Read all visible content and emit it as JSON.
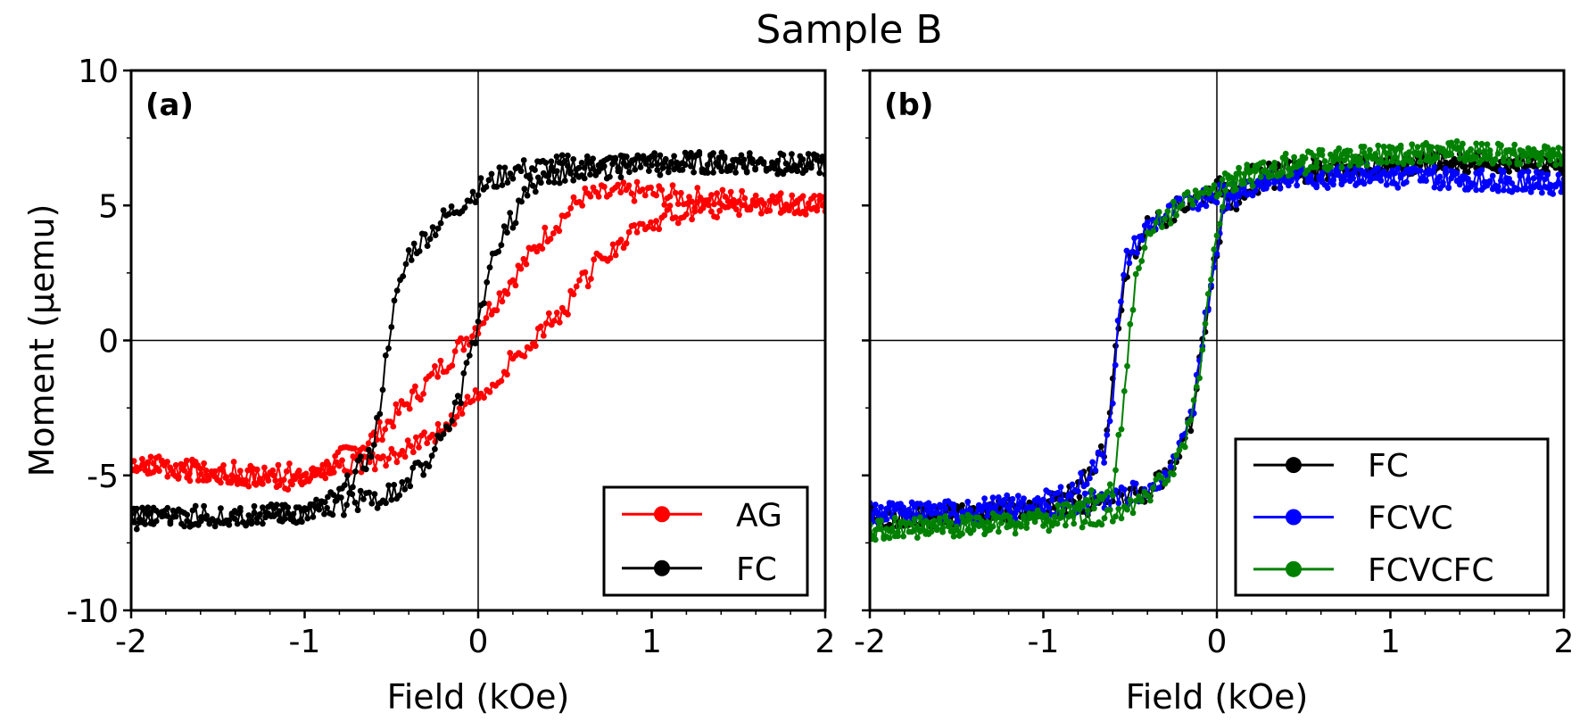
{
  "figure": {
    "title": "Sample B"
  },
  "chart_data": [
    {
      "type": "line",
      "panel_label": "(a)",
      "xlabel": "Field (kOe)",
      "ylabel": "Moment (μemu)",
      "xlim": [
        -2,
        2
      ],
      "ylim": [
        -10,
        10
      ],
      "xticks": [
        "-2",
        "-1",
        "0",
        "1",
        "2"
      ],
      "yticks": [
        "10",
        "5",
        "0",
        "-5",
        "-10"
      ],
      "zero_lines": true,
      "legend_position": "lower-right",
      "series": [
        {
          "name": "AG",
          "color": "#ff0000",
          "branches": [
            {
              "x": [
                -2.0,
                -1.5,
                -1.0,
                -0.6,
                -0.3,
                -0.1,
                0.0,
                0.2,
                0.4,
                0.6,
                0.9,
                1.2,
                1.6,
                2.0
              ],
              "y": [
                -4.5,
                -5.0,
                -5.2,
                -3.6,
                -1.6,
                -0.2,
                0.6,
                2.3,
                4.0,
                5.3,
                5.5,
                5.3,
                5.2,
                5.0
              ]
            },
            {
              "x": [
                2.0,
                1.6,
                1.2,
                0.9,
                0.7,
                0.5,
                0.3,
                0.1,
                0.0,
                -0.2,
                -0.5,
                -0.8,
                -1.2,
                -1.6,
                -2.0
              ],
              "y": [
                5.0,
                5.0,
                4.8,
                4.2,
                3.0,
                1.2,
                0.0,
                -1.4,
                -2.0,
                -3.3,
                -4.2,
                -4.8,
                -5.0,
                -4.8,
                -4.6
              ]
            }
          ]
        },
        {
          "name": "FC",
          "color": "#000000",
          "branches": [
            {
              "x": [
                -2.0,
                -1.5,
                -1.0,
                -0.8,
                -0.6,
                -0.5,
                -0.4,
                -0.2,
                0.0,
                0.2,
                0.5,
                1.0,
                1.5,
                2.0
              ],
              "y": [
                -6.6,
                -6.5,
                -6.4,
                -5.8,
                -4.0,
                0.8,
                3.2,
                4.5,
                5.6,
                6.3,
                6.5,
                6.6,
                6.6,
                6.5
              ]
            },
            {
              "x": [
                2.0,
                1.5,
                1.0,
                0.5,
                0.3,
                0.1,
                0.0,
                -0.1,
                -0.2,
                -0.3,
                -0.5,
                -1.0,
                -1.5,
                -2.0
              ],
              "y": [
                6.5,
                6.6,
                6.5,
                6.3,
                5.6,
                3.5,
                0.5,
                -2.0,
                -3.5,
                -4.5,
                -5.7,
                -6.4,
                -6.5,
                -6.6
              ]
            }
          ]
        }
      ]
    },
    {
      "type": "line",
      "panel_label": "(b)",
      "xlabel": "Field (kOe)",
      "xlim": [
        -2,
        2
      ],
      "ylim": [
        -10,
        10
      ],
      "xticks": [
        "-2",
        "-1",
        "0",
        "1",
        "2"
      ],
      "zero_lines": true,
      "legend_position": "lower-right",
      "series": [
        {
          "name": "FC",
          "color": "#000000",
          "branches": [
            {
              "x": [
                -2.0,
                -1.5,
                -1.0,
                -0.8,
                -0.65,
                -0.6,
                -0.55,
                -0.5,
                -0.4,
                -0.2,
                0.0,
                0.3,
                0.8,
                1.4,
                2.0
              ],
              "y": [
                -6.6,
                -6.5,
                -6.2,
                -5.6,
                -4.0,
                -1.5,
                1.5,
                3.0,
                4.2,
                5.0,
                5.6,
                6.3,
                6.5,
                6.6,
                6.5
              ]
            },
            {
              "x": [
                2.0,
                1.4,
                0.8,
                0.3,
                0.05,
                0.0,
                -0.05,
                -0.1,
                -0.15,
                -0.25,
                -0.4,
                -0.6,
                -1.0,
                -1.5,
                -2.0
              ],
              "y": [
                6.5,
                6.6,
                6.4,
                6.0,
                5.0,
                3.5,
                1.5,
                -1.0,
                -3.0,
                -4.8,
                -5.6,
                -6.0,
                -6.2,
                -6.4,
                -6.6
              ]
            }
          ]
        },
        {
          "name": "FCVC",
          "color": "#0000ff",
          "branches": [
            {
              "x": [
                -2.0,
                -1.5,
                -1.0,
                -0.8,
                -0.65,
                -0.6,
                -0.57,
                -0.52,
                -0.4,
                -0.2,
                0.0,
                0.3,
                0.8,
                1.4,
                2.0
              ],
              "y": [
                -6.4,
                -6.3,
                -6.0,
                -5.4,
                -4.2,
                -2.0,
                0.5,
                3.0,
                4.2,
                5.0,
                5.5,
                6.0,
                6.2,
                6.0,
                5.8
              ]
            },
            {
              "x": [
                2.0,
                1.4,
                0.8,
                0.3,
                0.05,
                0.0,
                -0.05,
                -0.1,
                -0.15,
                -0.25,
                -0.4,
                -0.6,
                -1.0,
                -1.5,
                -2.0
              ],
              "y": [
                5.8,
                6.0,
                6.1,
                5.8,
                5.2,
                3.5,
                1.5,
                -1.0,
                -3.0,
                -4.6,
                -5.5,
                -5.9,
                -6.2,
                -6.4,
                -6.4
              ]
            }
          ]
        },
        {
          "name": "FCVCFC",
          "color": "#008000",
          "branches": [
            {
              "x": [
                -2.0,
                -1.5,
                -1.0,
                -0.8,
                -0.6,
                -0.55,
                -0.5,
                -0.45,
                -0.35,
                -0.2,
                0.0,
                0.3,
                0.8,
                1.4,
                2.0
              ],
              "y": [
                -7.0,
                -6.9,
                -6.6,
                -6.2,
                -5.5,
                -3.0,
                0.5,
                3.0,
                4.3,
                5.0,
                5.7,
                6.5,
                6.8,
                7.0,
                6.8
              ]
            },
            {
              "x": [
                2.0,
                1.4,
                0.8,
                0.3,
                0.05,
                0.0,
                -0.05,
                -0.1,
                -0.15,
                -0.25,
                -0.4,
                -0.6,
                -1.0,
                -1.5,
                -2.0
              ],
              "y": [
                6.8,
                7.0,
                6.8,
                6.4,
                5.6,
                4.0,
                1.8,
                -1.0,
                -3.0,
                -4.8,
                -5.8,
                -6.4,
                -6.7,
                -6.9,
                -7.0
              ]
            }
          ]
        }
      ]
    }
  ]
}
